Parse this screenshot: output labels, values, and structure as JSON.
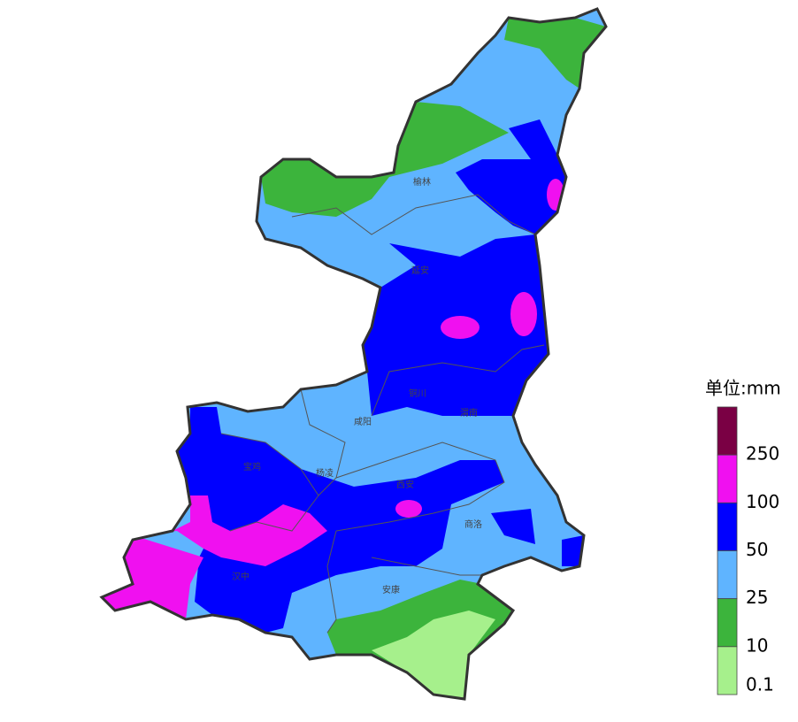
{
  "map": {
    "cities": [
      "榆林",
      "延安",
      "铜川",
      "渭南",
      "咸阳",
      "宝鸡",
      "杨凌",
      "西安",
      "商洛",
      "汉中",
      "安康"
    ],
    "legend": {
      "title": "单位:mm",
      "colors": [
        "#7a0044",
        "#f010f0",
        "#0000ff",
        "#5fb4ff",
        "#3cb43c",
        "#a6f08c"
      ],
      "labels": [
        "250",
        "100",
        "50",
        "25",
        "10",
        "0.1"
      ]
    }
  }
}
